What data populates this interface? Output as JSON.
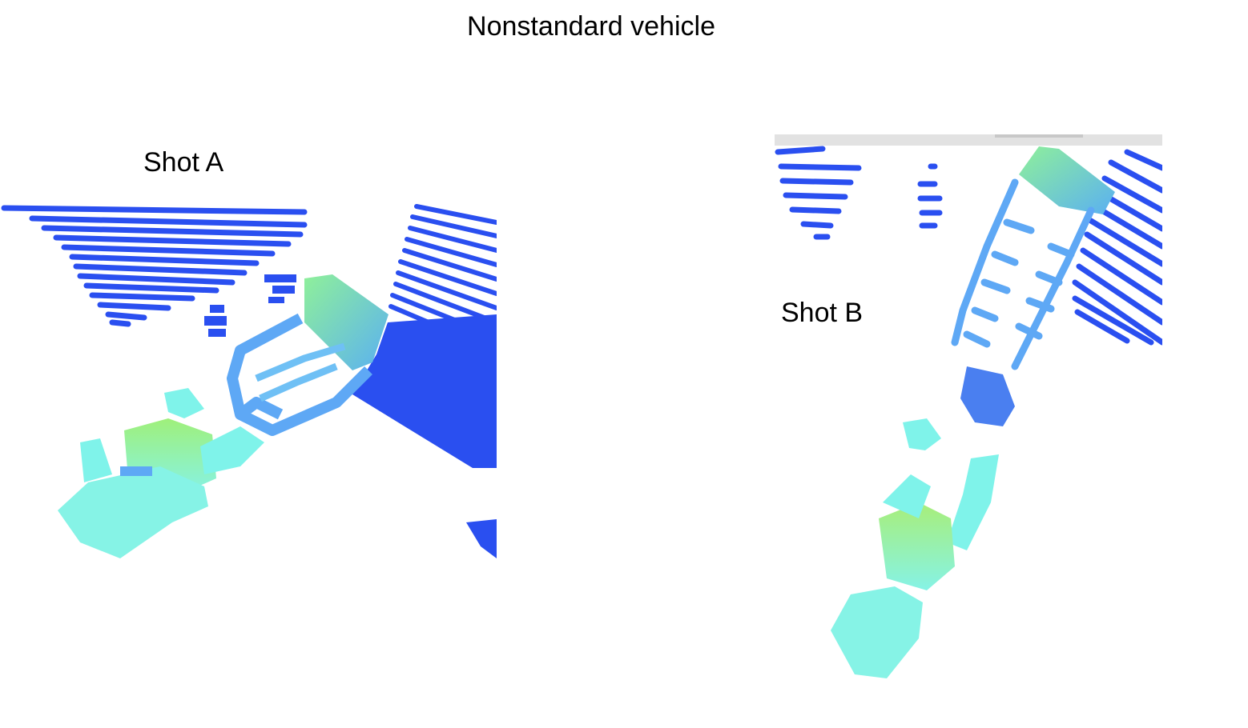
{
  "slide": {
    "title": "Nonstandard vehicle"
  },
  "shots": [
    {
      "label": "Shot A"
    },
    {
      "label": "Shot B"
    }
  ],
  "colors": {
    "background": "#ffffff",
    "ground_scan": "#2a4ff0",
    "mid_height": "#5ea8f5",
    "high_green": "#7af0a0",
    "cyan": "#7ff3ea"
  }
}
